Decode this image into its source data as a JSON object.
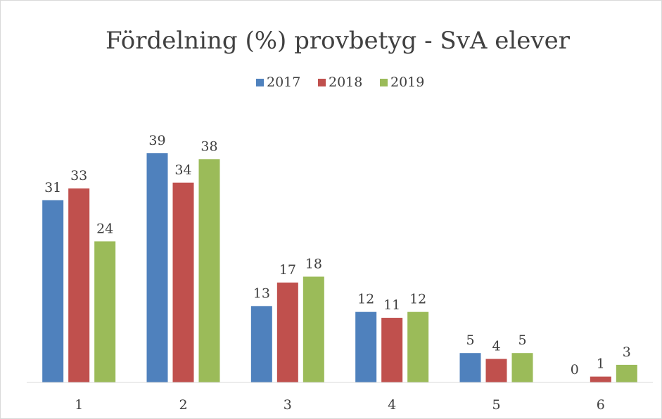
{
  "chart_data": {
    "type": "bar",
    "title": "Fördelning (%) provbetyg - SvA elever",
    "categories": [
      "1",
      "2",
      "3",
      "4",
      "5",
      "6"
    ],
    "series": [
      {
        "name": "2017",
        "color": "#4f81bd",
        "values": [
          31,
          39,
          13,
          12,
          5,
          0
        ]
      },
      {
        "name": "2018",
        "color": "#c0504d",
        "values": [
          33,
          34,
          17,
          11,
          4,
          1
        ]
      },
      {
        "name": "2019",
        "color": "#9bbb59",
        "values": [
          24,
          38,
          18,
          12,
          5,
          3
        ]
      }
    ],
    "legend": "top",
    "grid": false
  }
}
